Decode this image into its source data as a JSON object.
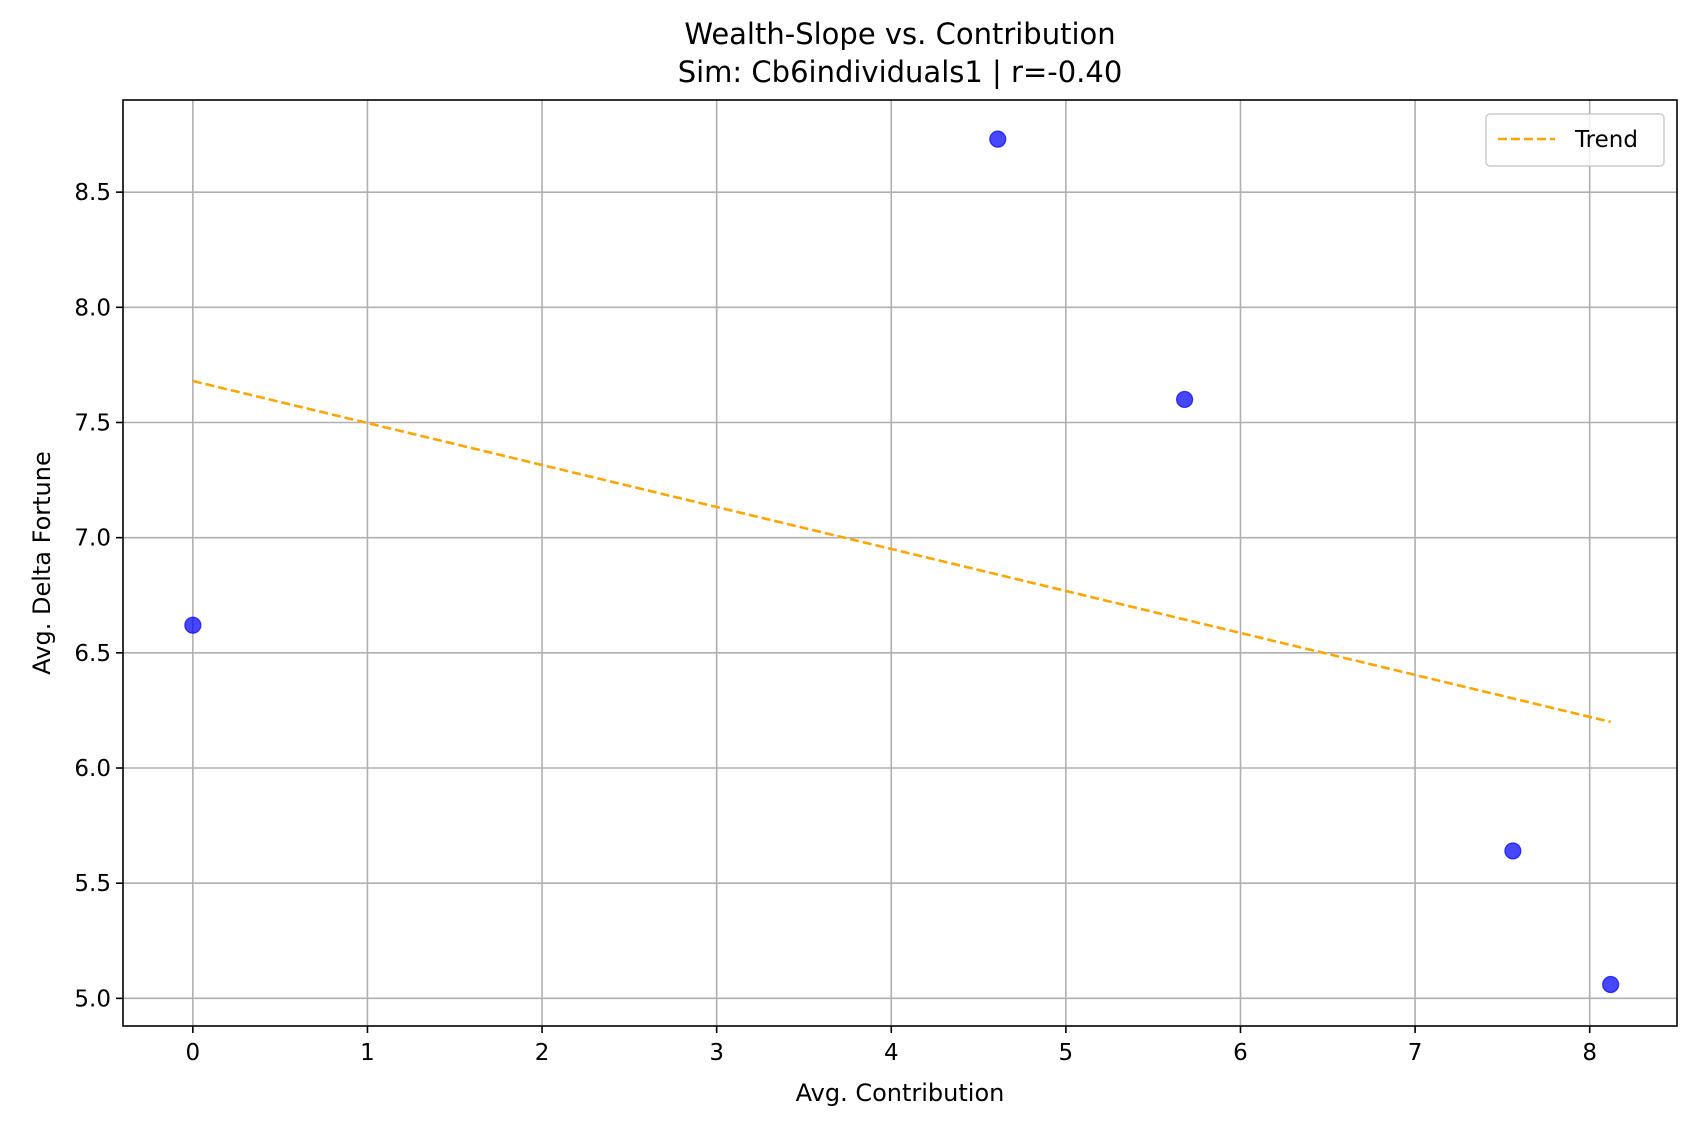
{
  "chart_data": {
    "type": "scatter",
    "title": "Wealth-Slope vs. Contribution",
    "subtitle": "Sim: Cb6individuals1 | r=-0.40",
    "xlabel": "Avg. Contribution",
    "ylabel": "Avg. Delta Fortune",
    "xlim": [
      -0.4,
      8.5
    ],
    "ylim": [
      4.88,
      8.9
    ],
    "xticks": [
      0,
      1,
      2,
      3,
      4,
      5,
      6,
      7,
      8
    ],
    "yticks": [
      5.0,
      5.5,
      6.0,
      6.5,
      7.0,
      7.5,
      8.0,
      8.5
    ],
    "grid": true,
    "legend_position": "top-right",
    "points": [
      {
        "x": 0.0,
        "y": 6.62
      },
      {
        "x": 4.61,
        "y": 8.73
      },
      {
        "x": 5.68,
        "y": 7.6
      },
      {
        "x": 7.56,
        "y": 5.64
      },
      {
        "x": 8.12,
        "y": 5.06
      }
    ],
    "trend": {
      "name": "Trend",
      "x": [
        0.0,
        8.12
      ],
      "y": [
        7.68,
        6.2
      ]
    },
    "colors": {
      "points": "#0000ff",
      "trend": "#ffa500",
      "grid": "#b0b0b0"
    }
  }
}
